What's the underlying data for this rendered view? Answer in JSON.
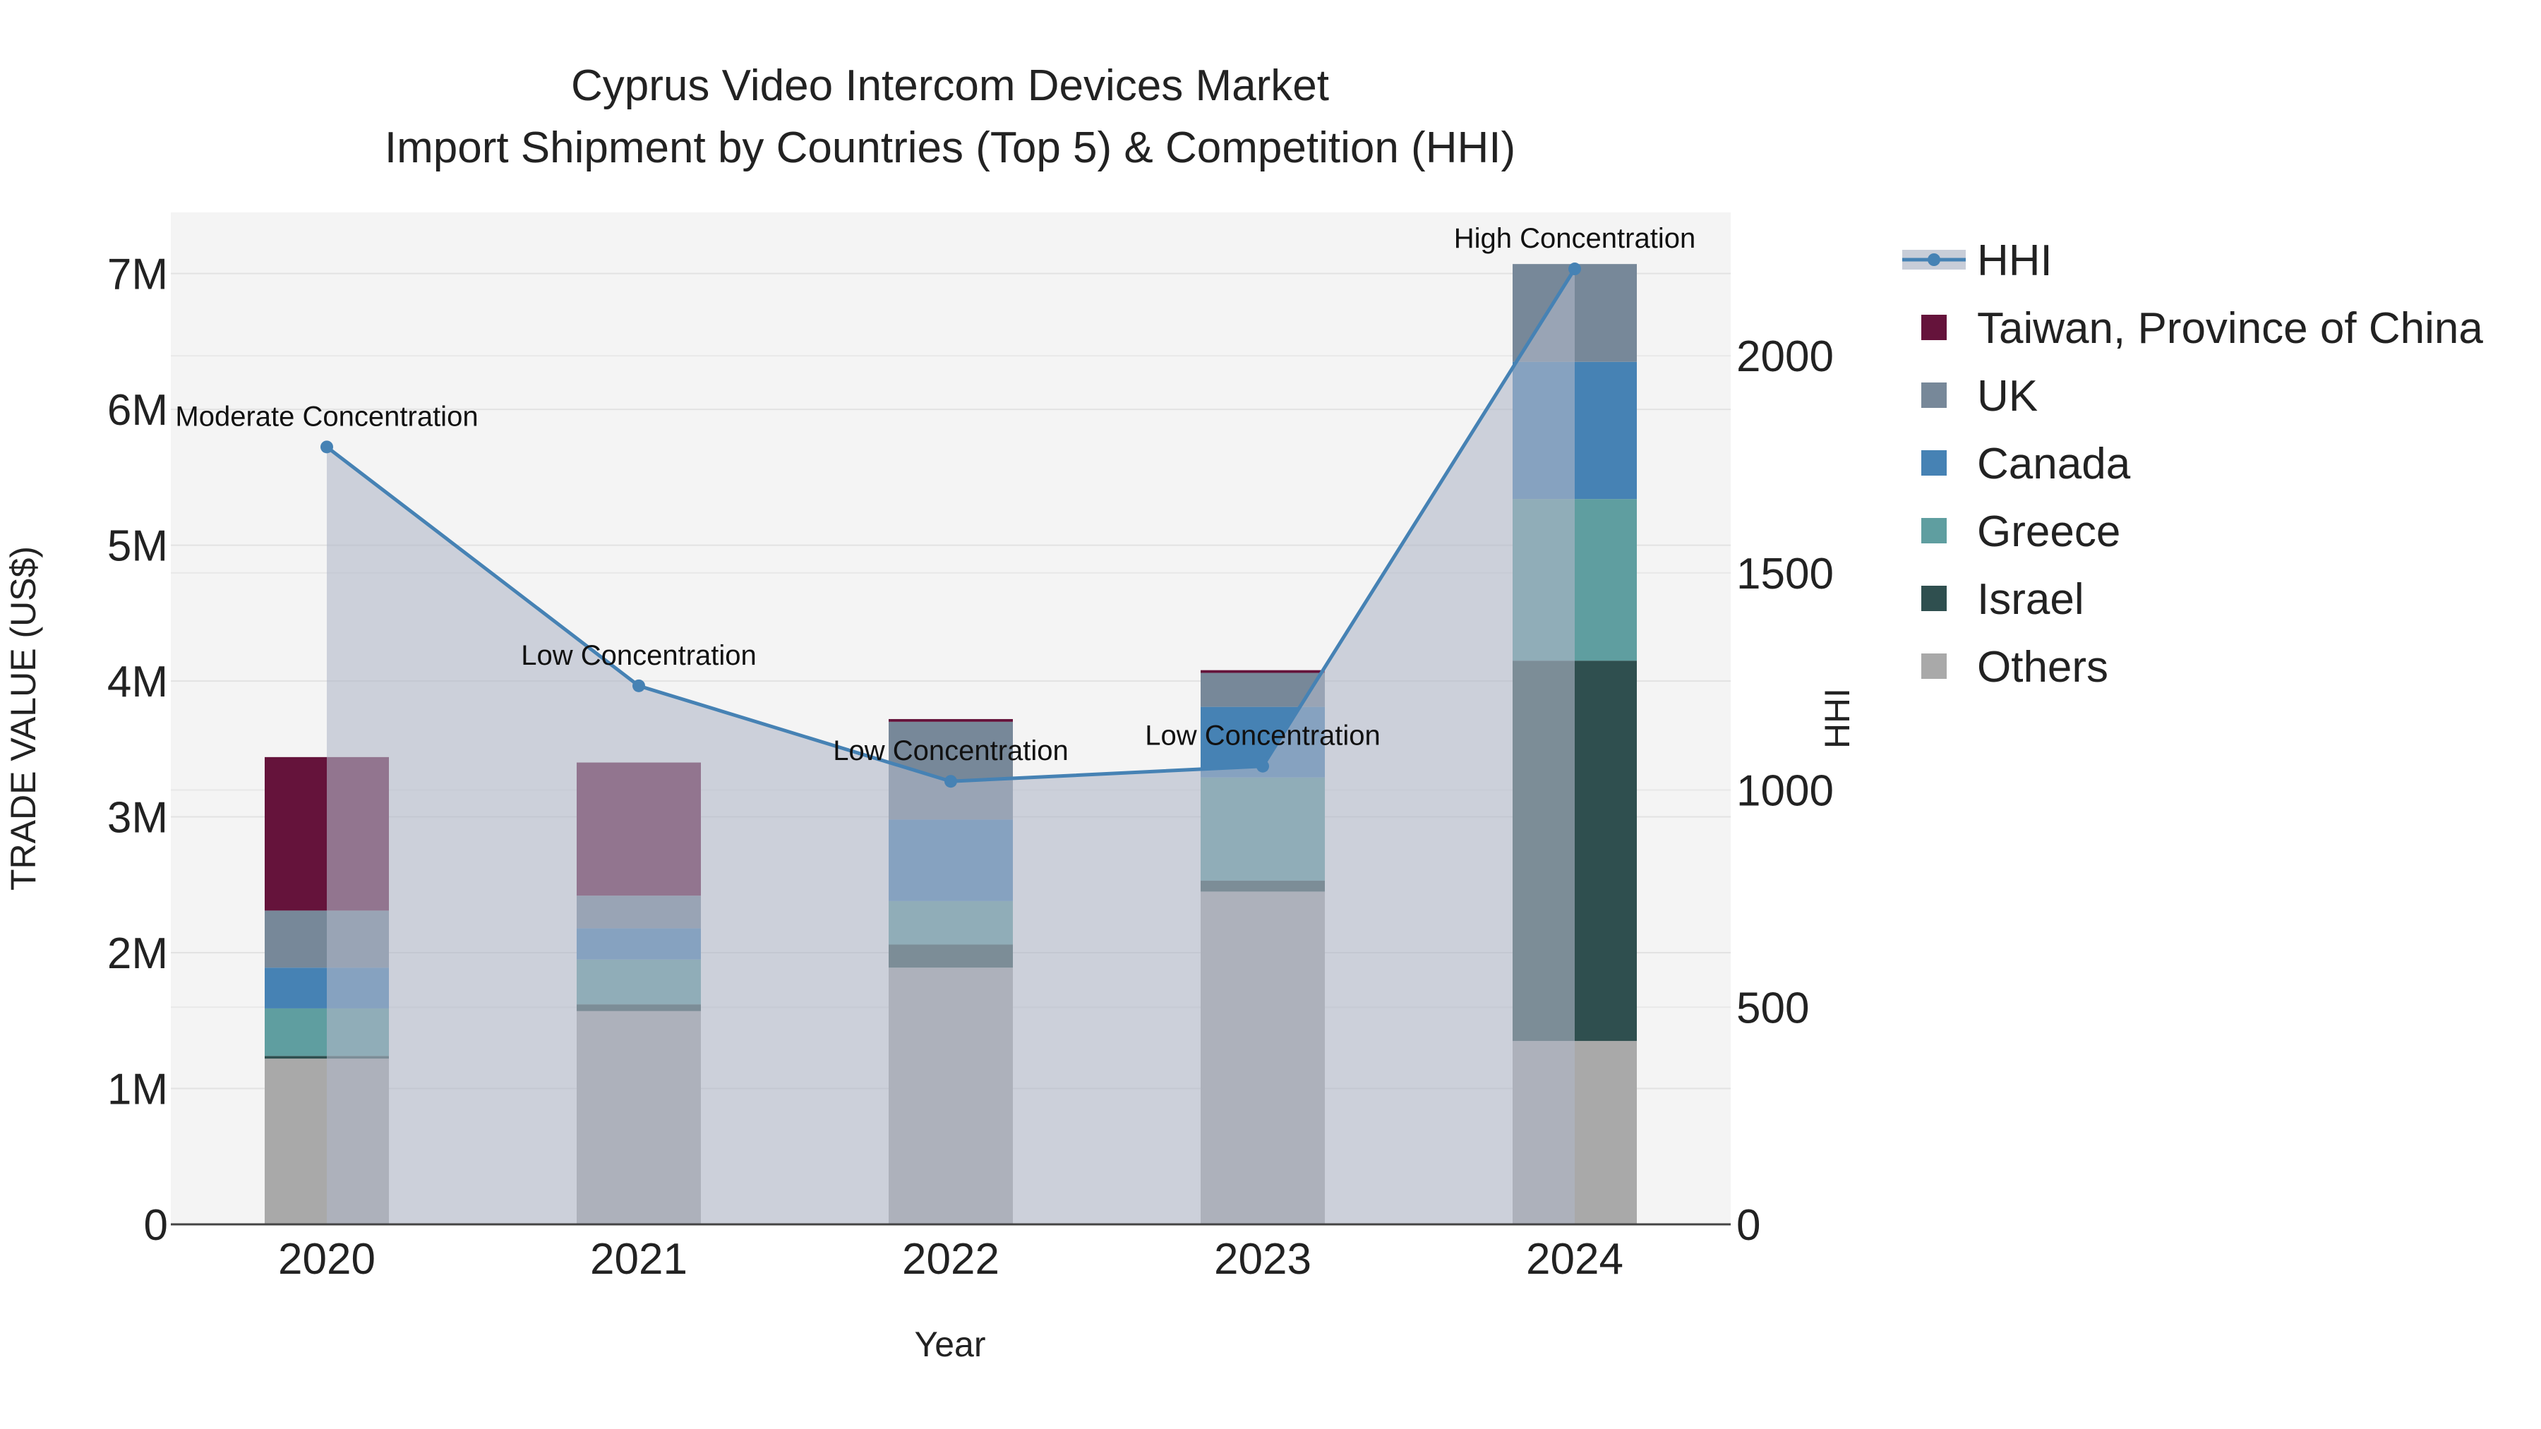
{
  "chart_data": {
    "type": "bar",
    "title_line1": "Cyprus Video Intercom Devices Market",
    "title_line2": "Import Shipment by Countries (Top 5) & Competition (HHI)",
    "xlabel": "Year",
    "ylabel": "TRADE VALUE (US$)",
    "y2label": "HHI",
    "categories": [
      "2020",
      "2021",
      "2022",
      "2023",
      "2024"
    ],
    "ylim": [
      0,
      7450000
    ],
    "y2lim": [
      0,
      2330
    ],
    "y_ticks": [
      {
        "value": 0,
        "label": "0"
      },
      {
        "value": 1000000,
        "label": "1M"
      },
      {
        "value": 2000000,
        "label": "2M"
      },
      {
        "value": 3000000,
        "label": "3M"
      },
      {
        "value": 4000000,
        "label": "4M"
      },
      {
        "value": 5000000,
        "label": "5M"
      },
      {
        "value": 6000000,
        "label": "6M"
      },
      {
        "value": 7000000,
        "label": "7M"
      }
    ],
    "y2_ticks": [
      {
        "value": 0,
        "label": "0"
      },
      {
        "value": 500,
        "label": "500"
      },
      {
        "value": 1000,
        "label": "1000"
      },
      {
        "value": 1500,
        "label": "1500"
      },
      {
        "value": 2000,
        "label": "2000"
      }
    ],
    "series": [
      {
        "name": "Others",
        "color": "#a9a9a9",
        "values": [
          1220000,
          1570000,
          1890000,
          2450000,
          1350000
        ]
      },
      {
        "name": "Israel",
        "color": "#2f4f4f",
        "values": [
          20000,
          50000,
          170000,
          80000,
          2800000
        ]
      },
      {
        "name": "Greece",
        "color": "#5f9ea0",
        "values": [
          350000,
          330000,
          320000,
          760000,
          1190000
        ]
      },
      {
        "name": "Canada",
        "color": "#4682b4",
        "values": [
          300000,
          230000,
          600000,
          520000,
          1010000
        ]
      },
      {
        "name": "UK",
        "color": "#778899",
        "values": [
          420000,
          240000,
          720000,
          250000,
          720000
        ]
      },
      {
        "name": "Taiwan, Province of China",
        "color": "#65133b",
        "values": [
          1130000,
          980000,
          20000,
          20000,
          0
        ]
      }
    ],
    "hhi": {
      "name": "HHI",
      "color": "#4682b4",
      "fill_color": "#b0b8c8",
      "values": [
        1790,
        1240,
        1020,
        1055,
        2200
      ],
      "labels": [
        "Moderate Concentration",
        "Low Concentration",
        "Low Concentration",
        "Low Concentration",
        "High Concentration"
      ]
    },
    "legend": [
      "HHI",
      "Taiwan, Province of China",
      "UK",
      "Canada",
      "Greece",
      "Israel",
      "Others"
    ]
  }
}
